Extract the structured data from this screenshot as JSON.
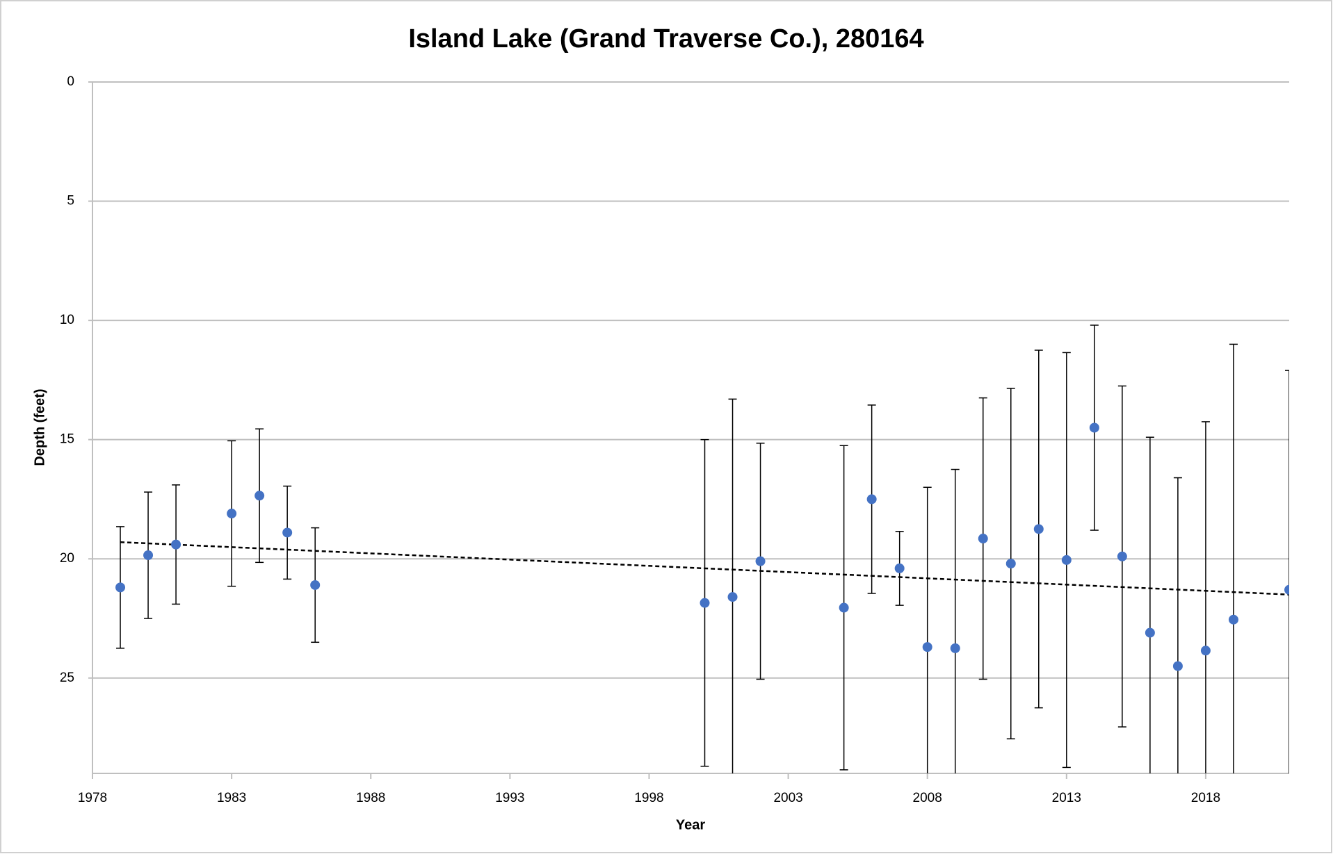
{
  "chart_data": {
    "type": "scatter",
    "title": "Island Lake (Grand Traverse Co.), 280164",
    "x_label": "Year",
    "y_label": "Depth (feet)",
    "xlim": [
      1978,
      2021
    ],
    "xticks": [
      1978,
      1983,
      1988,
      1993,
      1998,
      2003,
      2008,
      2013,
      2018
    ],
    "ylim": [
      0,
      29
    ],
    "yticks": [
      0,
      5,
      10,
      15,
      20,
      25
    ],
    "y_inverted": true,
    "grid": true,
    "color": "#4472c4",
    "x": [
      1979,
      1980,
      1981,
      1983,
      1984,
      1985,
      1986,
      2000,
      2001,
      2002,
      2005,
      2006,
      2007,
      2008,
      2009,
      2010,
      2011,
      2012,
      2013,
      2014,
      2015,
      2016,
      2017,
      2018,
      2019,
      2021
    ],
    "values": [
      21.2,
      19.85,
      19.4,
      18.1,
      17.35,
      18.9,
      21.1,
      21.85,
      21.6,
      20.1,
      22.05,
      17.5,
      20.4,
      23.7,
      23.75,
      19.15,
      20.2,
      18.75,
      20.05,
      14.5,
      19.9,
      23.1,
      24.5,
      23.85,
      22.55,
      21.3
    ],
    "errors": [
      2.55,
      2.65,
      2.5,
      3.05,
      2.8,
      1.95,
      2.4,
      6.85,
      8.3,
      4.95,
      6.8,
      3.95,
      1.55,
      6.7,
      7.5,
      5.9,
      7.35,
      7.5,
      8.7,
      4.3,
      7.15,
      8.2,
      7.9,
      9.6,
      11.55,
      9.2
    ],
    "trendline": {
      "x": [
        1979,
        2021
      ],
      "values": [
        19.3,
        21.5
      ],
      "color": "#000000"
    }
  }
}
